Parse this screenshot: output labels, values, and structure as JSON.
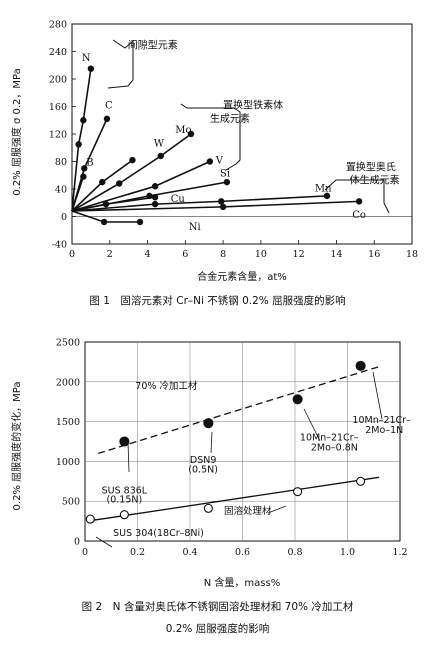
{
  "figures": [
    {
      "caption": "图 1　固溶元素对 Cr–Ni 不锈钢 0.2% 屈服强度的影响"
    },
    {
      "caption_line1": "图 2　N 含量对奥氏体不锈钢固溶处理材和 70% 冷加工材",
      "caption_line2": "0.2% 屈服强度的影响"
    }
  ],
  "chart_data": [
    {
      "type": "scatter",
      "title": "",
      "xlabel": "合金元素含量，at%",
      "ylabel": "0.2% 屈服强度 σ 0.2，MPa",
      "xlim": [
        0,
        18
      ],
      "ylim": [
        -40,
        280
      ],
      "x_ticks": [
        0,
        2,
        4,
        6,
        8,
        10,
        12,
        14,
        16,
        18
      ],
      "y_ticks": [
        -40,
        0,
        40,
        80,
        120,
        160,
        200,
        240,
        280
      ],
      "grid": false,
      "series": [
        {
          "name": "N",
          "x": [
            0,
            0.35,
            0.6,
            1.0
          ],
          "y": [
            8,
            105,
            140,
            215
          ],
          "label_at": [
            0.75,
            232
          ]
        },
        {
          "name": "C",
          "x": [
            0,
            0.65,
            1.85
          ],
          "y": [
            8,
            70,
            142
          ],
          "label_at": [
            1.95,
            163
          ]
        },
        {
          "name": "B",
          "x": [
            0,
            0.6
          ],
          "y": [
            8,
            58
          ],
          "label_at": [
            0.95,
            80
          ]
        },
        {
          "name": "W",
          "x": [
            0,
            1.6,
            3.2
          ],
          "y": [
            8,
            50,
            82
          ],
          "label_at": [
            4.6,
            108
          ]
        },
        {
          "name": "Mo",
          "x": [
            0,
            2.5,
            4.7,
            6.3
          ],
          "y": [
            8,
            48,
            88,
            120
          ],
          "label_at": [
            5.9,
            127
          ]
        },
        {
          "name": "V",
          "x": [
            0,
            4.4,
            7.3
          ],
          "y": [
            8,
            44,
            80
          ],
          "label_at": [
            7.8,
            83
          ]
        },
        {
          "name": "Si",
          "x": [
            0,
            4.1,
            8.2
          ],
          "y": [
            8,
            30,
            50
          ],
          "label_at": [
            8.1,
            64
          ]
        },
        {
          "name": "Cu",
          "x": [
            0,
            1.8,
            4.4
          ],
          "y": [
            8,
            18,
            28
          ],
          "label_at": [
            5.6,
            27
          ]
        },
        {
          "name": "Mn",
          "x": [
            0,
            4.4,
            7.9,
            13.5
          ],
          "y": [
            8,
            18,
            22,
            30
          ],
          "label_at": [
            13.3,
            42
          ]
        },
        {
          "name": "Co",
          "x": [
            0,
            8.0,
            15.2
          ],
          "y": [
            8,
            14,
            22
          ],
          "label_at": [
            15.2,
            4
          ]
        },
        {
          "name": "Ni",
          "x": [
            0,
            1.7,
            3.6
          ],
          "y": [
            8,
            -8,
            -8
          ],
          "label_at": [
            6.5,
            -14
          ]
        }
      ],
      "annotations": [
        {
          "text": "间隙型元素",
          "at": [
            2.95,
            250
          ]
        },
        {
          "text": "置换型铁素体",
          "at": [
            8.0,
            163
          ]
        },
        {
          "text": "生成元素",
          "at": [
            7.3,
            143
          ]
        },
        {
          "text": "置换型奥氏",
          "at": [
            14.5,
            73
          ]
        },
        {
          "text": "体生成元素",
          "at": [
            14.7,
            54
          ]
        }
      ]
    },
    {
      "type": "scatter",
      "title": "",
      "xlabel": "N 含量，mass%",
      "ylabel": "0.2% 屈服强度的变化，MPa",
      "xlim": [
        0,
        1.2
      ],
      "ylim": [
        0,
        2500
      ],
      "x_ticks": [
        "0",
        "0.2",
        "0.4",
        "0.6",
        "0.8",
        "1.0",
        "1.2"
      ],
      "y_ticks": [
        0,
        500,
        1000,
        1500,
        2000,
        2500
      ],
      "grid": true,
      "series": [
        {
          "name": "70% 冷加工材",
          "marker": "filled",
          "trend": [
            [
              0.05,
              1100
            ],
            [
              1.12,
              2190
            ]
          ],
          "x": [
            0.15,
            0.47,
            0.81,
            1.05
          ],
          "y": [
            1250,
            1480,
            1780,
            2200
          ]
        },
        {
          "name": "固溶处理材",
          "marker": "open",
          "trend": [
            [
              0.02,
              255
            ],
            [
              1.12,
              800
            ]
          ],
          "x": [
            0.02,
            0.15,
            0.47,
            0.81,
            1.05
          ],
          "y": [
            275,
            330,
            410,
            620,
            750
          ]
        }
      ],
      "annotations": [
        {
          "text": "70% 冷加工材",
          "at": [
            0.31,
            1960
          ]
        },
        {
          "text": "SUS 836L",
          "at": [
            0.15,
            650
          ]
        },
        {
          "text": "(0.15N)",
          "at": [
            0.15,
            535
          ]
        },
        {
          "text": "DSN9",
          "at": [
            0.45,
            1030
          ]
        },
        {
          "text": "(0.5N)",
          "at": [
            0.45,
            910
          ]
        },
        {
          "text": "10Mn–21Cr–",
          "at": [
            0.93,
            1310
          ]
        },
        {
          "text": "2Mo–0.8N",
          "at": [
            0.95,
            1190
          ]
        },
        {
          "text": "10Mn–21Cr–",
          "at": [
            1.13,
            1530
          ]
        },
        {
          "text": "2Mo–1N",
          "at": [
            1.14,
            1405
          ]
        },
        {
          "text": "固溶处理材",
          "at": [
            0.62,
            390
          ]
        },
        {
          "text": "SUS 304(18Cr–8Ni)",
          "at": [
            0.28,
            110
          ]
        }
      ]
    }
  ]
}
